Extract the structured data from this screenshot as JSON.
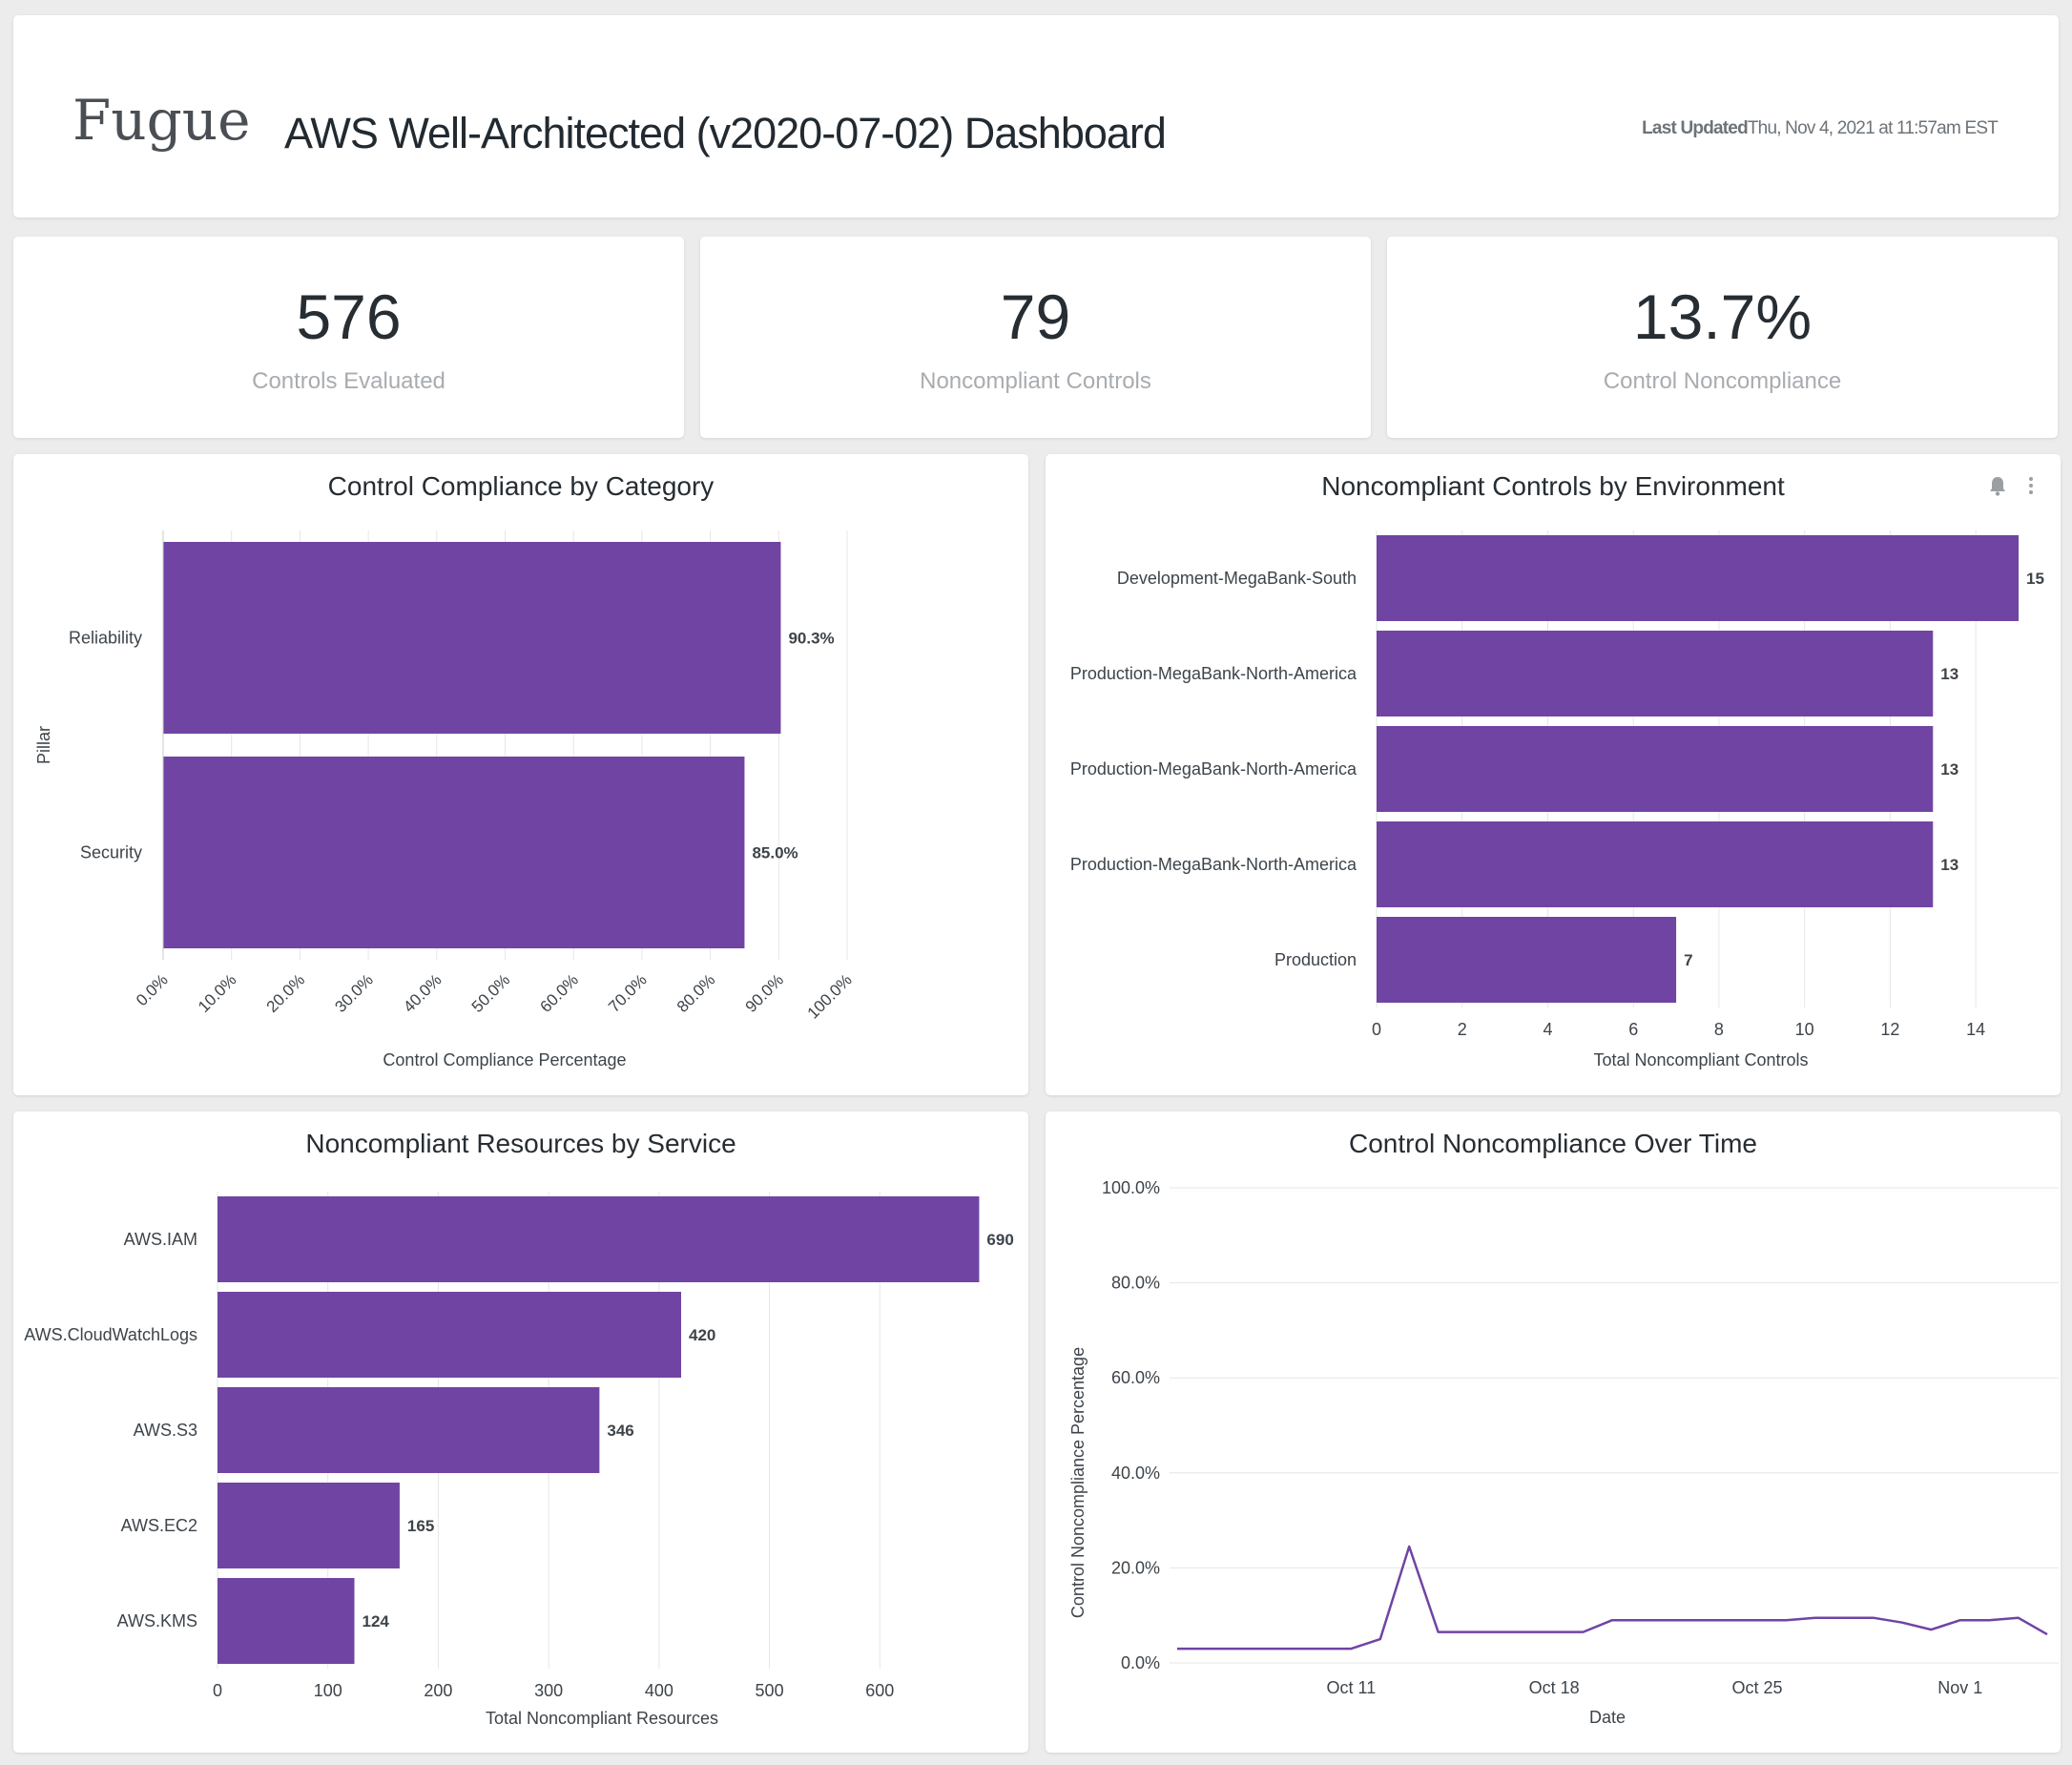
{
  "header": {
    "logo_text": "Fugue",
    "title": "AWS Well-Architected (v2020-07-02) Dashboard",
    "last_updated_label": "Last Updated",
    "last_updated_value": "Thu, Nov 4, 2021 at 11:57am EST"
  },
  "kpis": [
    {
      "value": "576",
      "label": "Controls Evaluated"
    },
    {
      "value": "79",
      "label": "Noncompliant Controls"
    },
    {
      "value": "13.7%",
      "label": "Control Noncompliance"
    }
  ],
  "colors": {
    "bar": "#7044a3",
    "grid": "#e6e6e6",
    "line": "#7044a3"
  },
  "chart_data": [
    {
      "id": "category",
      "type": "bar",
      "orientation": "horizontal",
      "title": "Control Compliance by Category",
      "xlabel": "Control Compliance Percentage",
      "ylabel": "Pillar",
      "categories": [
        "Reliability",
        "Security"
      ],
      "values": [
        90.3,
        85.0
      ],
      "value_labels": [
        "90.3%",
        "85.0%"
      ],
      "xlim": [
        0,
        100
      ],
      "xticks": [
        "0.0%",
        "10.0%",
        "20.0%",
        "30.0%",
        "40.0%",
        "50.0%",
        "60.0%",
        "70.0%",
        "80.0%",
        "90.0%",
        "100.0%"
      ],
      "grid": true
    },
    {
      "id": "env",
      "type": "bar",
      "orientation": "horizontal",
      "title": "Noncompliant Controls by Environment",
      "xlabel": "Total Noncompliant Controls",
      "ylabel": "",
      "categories": [
        "Development-MegaBank-South",
        "Production-MegaBank-North-America",
        "Production-MegaBank-North-America",
        "Production-MegaBank-North-America",
        "Production"
      ],
      "values": [
        15,
        13,
        13,
        13,
        7
      ],
      "value_labels": [
        "15",
        "13",
        "13",
        "13",
        "7"
      ],
      "xlim": [
        0,
        15
      ],
      "xticks": [
        "0",
        "2",
        "4",
        "6",
        "8",
        "10",
        "12",
        "14"
      ],
      "grid": true,
      "tools": [
        "bell-icon",
        "kebab-menu-icon"
      ]
    },
    {
      "id": "service",
      "type": "bar",
      "orientation": "horizontal",
      "title": "Noncompliant Resources by Service",
      "xlabel": "Total Noncompliant Resources",
      "ylabel": "",
      "categories": [
        "AWS.IAM",
        "AWS.CloudWatchLogs",
        "AWS.S3",
        "AWS.EC2",
        "AWS.KMS"
      ],
      "values": [
        690,
        420,
        346,
        165,
        124
      ],
      "value_labels": [
        "690",
        "420",
        "346",
        "165",
        "124"
      ],
      "xlim": [
        0,
        700
      ],
      "xticks": [
        "0",
        "100",
        "200",
        "300",
        "400",
        "500",
        "600"
      ],
      "grid": true
    },
    {
      "id": "time",
      "type": "line",
      "title": "Control Noncompliance Over Time",
      "xlabel": "Date",
      "ylabel": "Control Noncompliance Percentage",
      "x": [
        "2021-10-05",
        "2021-10-06",
        "2021-10-07",
        "2021-10-08",
        "2021-10-09",
        "2021-10-10",
        "2021-10-11",
        "2021-10-12",
        "2021-10-13",
        "2021-10-14",
        "2021-10-15",
        "2021-10-16",
        "2021-10-17",
        "2021-10-18",
        "2021-10-19",
        "2021-10-20",
        "2021-10-21",
        "2021-10-22",
        "2021-10-23",
        "2021-10-24",
        "2021-10-25",
        "2021-10-26",
        "2021-10-27",
        "2021-10-28",
        "2021-10-29",
        "2021-10-30",
        "2021-10-31",
        "2021-11-01",
        "2021-11-02",
        "2021-11-03",
        "2021-11-04"
      ],
      "series": [
        {
          "values": [
            3.0,
            3.0,
            3.0,
            3.0,
            3.0,
            3.0,
            3.0,
            5.0,
            24.5,
            6.5,
            6.5,
            6.5,
            6.5,
            6.5,
            6.5,
            9.0,
            9.0,
            9.0,
            9.0,
            9.0,
            9.0,
            9.0,
            9.5,
            9.5,
            9.5,
            8.5,
            7.0,
            9.0,
            9.0,
            9.5,
            6.0
          ]
        }
      ],
      "ylim": [
        0,
        100
      ],
      "yticks": [
        "0.0%",
        "20.0%",
        "40.0%",
        "60.0%",
        "80.0%",
        "100.0%"
      ],
      "xticks": [
        {
          "date": "2021-10-11",
          "label": "Oct 11"
        },
        {
          "date": "2021-10-18",
          "label": "Oct 18"
        },
        {
          "date": "2021-10-25",
          "label": "Oct 25"
        },
        {
          "date": "2021-11-01",
          "label": "Nov 1"
        }
      ],
      "grid": true
    }
  ]
}
